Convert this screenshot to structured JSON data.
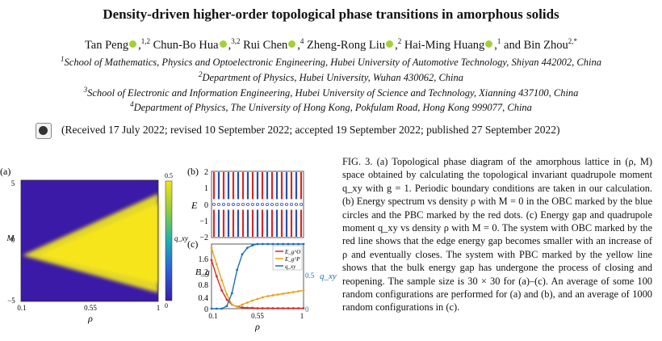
{
  "title": "Density-driven higher-order topological phase transitions in amorphous solids",
  "authors": [
    {
      "name": "Tan Peng",
      "sup": "1,2"
    },
    {
      "name": "Chun-Bo Hua",
      "sup": "3,2"
    },
    {
      "name": "Rui Chen",
      "sup": "4"
    },
    {
      "name": "Zheng-Rong Liu",
      "sup": "2"
    },
    {
      "name": "Hai-Ming Huang",
      "sup": "1"
    },
    {
      "name": "Bin Zhou",
      "sup": "2,*"
    }
  ],
  "affiliations": [
    {
      "sup": "1",
      "text": "School of Mathematics, Physics and Optoelectronic Engineering, Hubei University of Automotive Technology, Shiyan 442002, China"
    },
    {
      "sup": "2",
      "text": "Department of Physics, Hubei University, Wuhan 430062, China"
    },
    {
      "sup": "3",
      "text": "School of Electronic and Information Engineering, Hubei University of Science and Technology, Xianning 437100, China"
    },
    {
      "sup": "4",
      "text": "Department of Physics, The University of Hong Kong, Pokfulam Road, Hong Kong 999077, China"
    }
  ],
  "received": "(Received 17 July 2022; revised 10 September 2022; accepted 19 September 2022; published 27 September 2022)",
  "caption": "FIG. 3. (a) Topological phase diagram of the amorphous lattice in (ρ, M) space obtained by calculating the topological invariant quadrupole moment q_xy with g = 1. Periodic boundary conditions are taken in our calculation. (b) Energy spectrum vs density ρ with M = 0 in the OBC marked by the blue circles and the PBC marked by the red dots. (c) Energy gap and quadrupole moment q_xy vs density ρ with M = 0. The system with OBC marked by the red line shows that the edge energy gap becomes smaller with an increase of ρ and eventually closes. The system with PBC marked by the yellow line shows that the bulk energy gap has undergone the process of closing and reopening. The sample size is 30 × 30 for (a)–(c). An average of some 100 random configurations are performed for (a) and (b), and an average of 1000 random configurations in (c).",
  "colors": {
    "orcid": "#a6ce39",
    "obc": "#d62828",
    "pbc": "#e8a21a",
    "qxy": "#1a6fb5"
  },
  "chart_data": [
    {
      "type": "heatmap",
      "panel": "(a)",
      "xlabel": "ρ",
      "ylabel": "M",
      "xlim": [
        0.1,
        1
      ],
      "ylim": [
        -5,
        5
      ],
      "xticks": [
        "0.1",
        "0.55",
        "1"
      ],
      "yticks": [
        "5",
        "0",
        "−5"
      ],
      "colorbar": {
        "label": "q_xy",
        "range": [
          0,
          0.5
        ],
        "ticks": [
          "0.5",
          "0"
        ]
      },
      "region": {
        "value": 0.5,
        "apex": [
          0.13,
          -1.2
        ],
        "upper_at_rho1": 3.9,
        "lower_at_rho1": -4.3
      }
    },
    {
      "type": "scatter",
      "panel": "(b)",
      "xlabel": "",
      "ylabel": "E",
      "xlim": [
        0.1,
        1
      ],
      "ylim": [
        -2,
        2
      ],
      "yticks": [
        "2",
        "1",
        "0",
        "−1",
        "−2"
      ]
    },
    {
      "type": "line",
      "panel": "(c)",
      "xlabel": "ρ",
      "ylabel": "E_g",
      "ylabel2": "q_xy",
      "xlim": [
        0.1,
        1
      ],
      "ylim": [
        0,
        1.6
      ],
      "ylim2": [
        0,
        0.5
      ],
      "xticks": [
        "0.1",
        "0.55",
        "1"
      ],
      "yticks": [
        "1.6",
        "1.2",
        "0.8",
        "0.4",
        "0"
      ],
      "yticks2": [
        "0.5",
        "0"
      ],
      "legend": [
        "E_g^O",
        "E_g^P",
        "q_xy"
      ],
      "x": [
        0.1,
        0.15,
        0.2,
        0.25,
        0.3,
        0.35,
        0.4,
        0.45,
        0.5,
        0.55,
        0.6,
        0.65,
        0.7,
        0.75,
        0.8,
        0.85,
        0.9,
        0.95,
        1.0
      ],
      "series": [
        {
          "name": "E_g^O",
          "values": [
            1.2,
            0.8,
            0.45,
            0.22,
            0.1,
            0.05,
            0.03,
            0.02,
            0.02,
            0.01,
            0.01,
            0.01,
            0.01,
            0.01,
            0.01,
            0.01,
            0.01,
            0.01,
            0.01
          ]
        },
        {
          "name": "E_g^P",
          "values": [
            1.5,
            1.1,
            0.7,
            0.35,
            0.1,
            0.05,
            0.1,
            0.15,
            0.2,
            0.24,
            0.28,
            0.31,
            0.33,
            0.35,
            0.37,
            0.39,
            0.41,
            0.43,
            0.45
          ]
        },
        {
          "name": "q_xy",
          "values": [
            0.0,
            0.0,
            0.0,
            0.02,
            0.12,
            0.3,
            0.42,
            0.47,
            0.49,
            0.5,
            0.5,
            0.5,
            0.5,
            0.5,
            0.5,
            0.5,
            0.5,
            0.5,
            0.5
          ]
        }
      ]
    }
  ]
}
